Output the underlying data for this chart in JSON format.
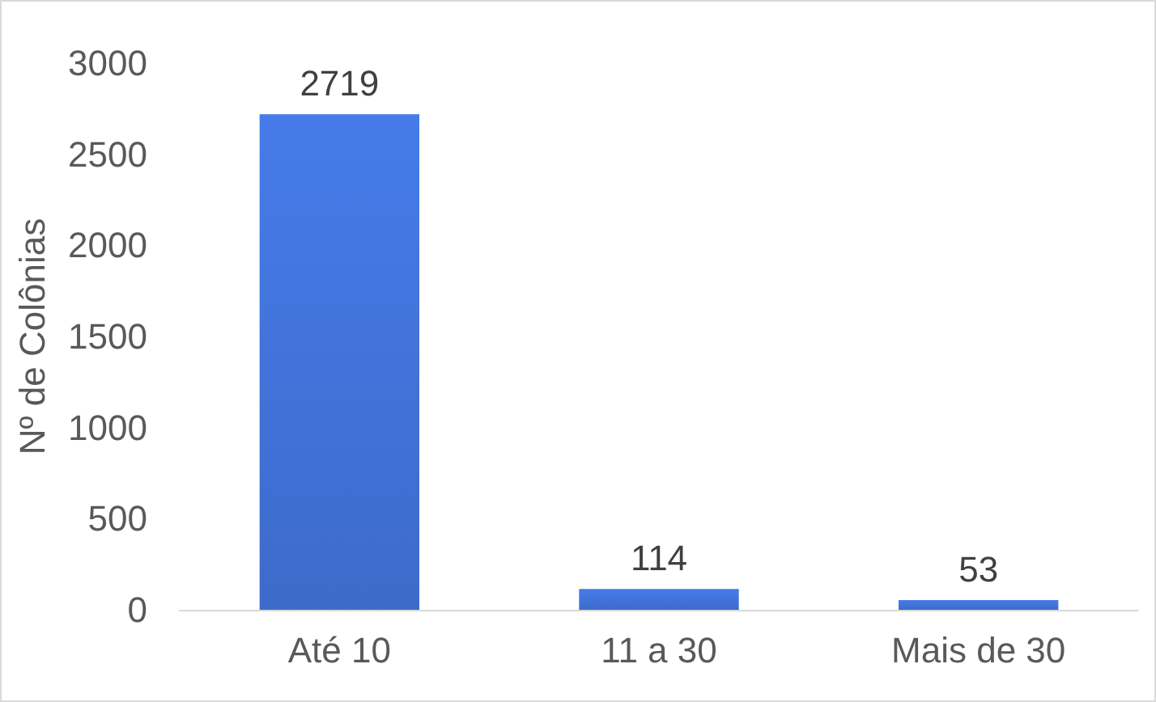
{
  "chart_data": {
    "type": "bar",
    "ylabel": "Nº de Colônias",
    "categories": [
      "Até 10",
      "11 a 30",
      "Mais de 30"
    ],
    "values": [
      2719,
      114,
      53
    ],
    "color": "#3d6bcb",
    "ylim": [
      0,
      3000
    ],
    "yticks": [
      0,
      500,
      1000,
      1500,
      2000,
      2500,
      3000
    ],
    "grid": false,
    "data_labels": true
  }
}
